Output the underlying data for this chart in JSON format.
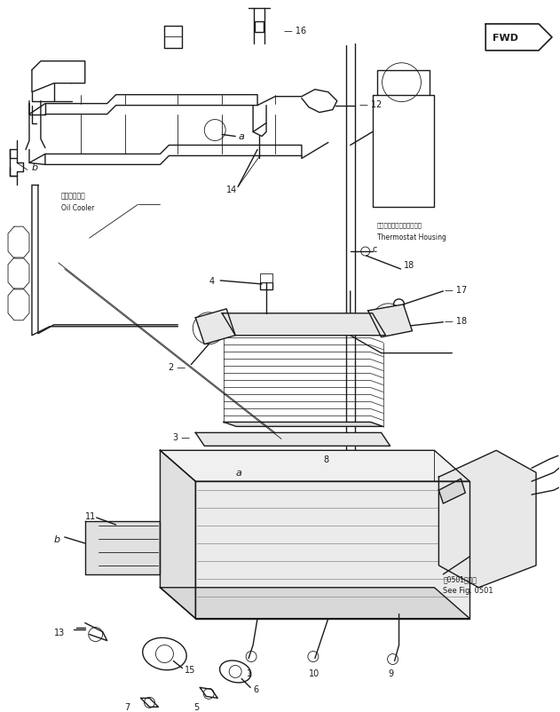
{
  "background_color": "#ffffff",
  "line_color": "#1a1a1a",
  "fig_width": 6.31,
  "fig_height": 8.03,
  "dpi": 100,
  "label_texts": {
    "oil_cooler_jp": "オイルクーラ",
    "oil_cooler_en": "Oil Cooler",
    "thermostat_jp": "サーモスタットハウジング",
    "thermostat_en": "Thermostat Housing",
    "see_fig_jp": "第0501図参照",
    "see_fig_en": "See Fig. 0501",
    "fwd": "FWD"
  }
}
